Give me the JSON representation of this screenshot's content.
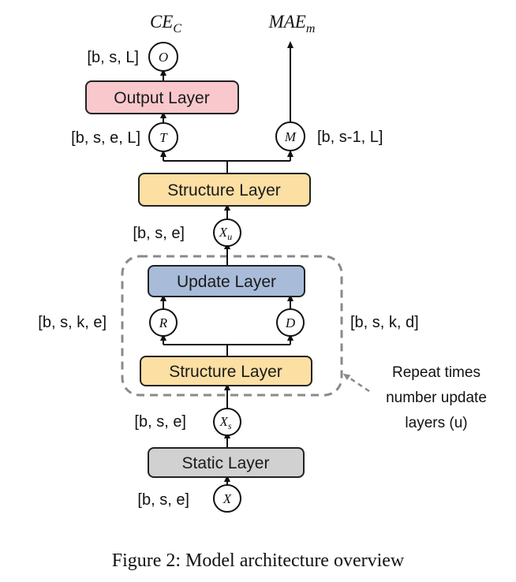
{
  "outputs": {
    "ce": {
      "main": "CE",
      "sub": "C"
    },
    "mae": {
      "main": "MAE",
      "sub": "m"
    }
  },
  "layers": {
    "output": "Output Layer",
    "structure_top": "Structure Layer",
    "update": "Update Layer",
    "structure_inner": "Structure Layer",
    "static": "Static Layer"
  },
  "nodes": {
    "o": {
      "main": "O",
      "sub": ""
    },
    "t": {
      "main": "T",
      "sub": ""
    },
    "m": {
      "main": "M",
      "sub": ""
    },
    "xu": {
      "main": "X",
      "sub": "u"
    },
    "r": {
      "main": "R",
      "sub": ""
    },
    "d": {
      "main": "D",
      "sub": ""
    },
    "xs": {
      "main": "X",
      "sub": "s"
    },
    "x": {
      "main": "X",
      "sub": ""
    }
  },
  "dims": {
    "o": "[b, s, L]",
    "t": "[b, s, e, L]",
    "m": "[b, s-1, L]",
    "xu": "[b, s, e]",
    "r": "[b, s, k, e]",
    "d": "[b, s, k, d]",
    "xs": "[b, s, e]",
    "x": "[b, s, e]"
  },
  "repeat_note": [
    "Repeat times",
    "number update",
    "layers (u)"
  ],
  "caption": "Figure 2: Model architecture overview",
  "colors": {
    "output_layer": "#f8c8cc",
    "structure_layer": "#fbdfa3",
    "update_layer": "#a8bcd9",
    "static_layer": "#d1d1d1",
    "dashed_box": "#8a8a8a"
  }
}
